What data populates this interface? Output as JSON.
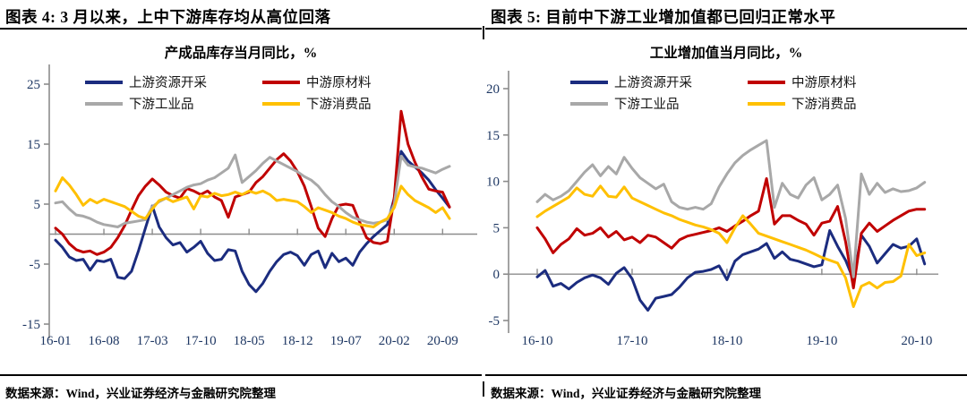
{
  "colors": {
    "navy": "#1b2c7f",
    "red": "#c00000",
    "gray": "#a8a8a8",
    "yellow": "#ffc000",
    "axis": "#8c8c8c",
    "tick_text": "#1f3864"
  },
  "panels": [
    {
      "header": "图表 4:  3 月以来，上中下游库存均从高位回落",
      "footer": "数据来源：Wind，兴业证券经济与金融研究院整理"
    },
    {
      "header": "图表 5:  目前中下游工业增加值都已回归正常水平",
      "footer": "数据来源：Wind，兴业证券经济与金融研究院整理"
    }
  ],
  "chart_data": [
    {
      "type": "line",
      "title": "产成品库存当月同比，%",
      "legend_position": "top",
      "grid": false,
      "zero_axis": true,
      "y_ticks": [
        25,
        15,
        5,
        -5,
        -15
      ],
      "ylim": [
        -17,
        27
      ],
      "x_tick_labels": [
        "16-01",
        "16-08",
        "17-03",
        "17-10",
        "18-05",
        "18-12",
        "19-07",
        "20-02",
        "20-09"
      ],
      "months": [
        "16-01",
        "16-02",
        "16-03",
        "16-04",
        "16-05",
        "16-06",
        "16-07",
        "16-08",
        "16-09",
        "16-10",
        "16-11",
        "16-12",
        "17-01",
        "17-02",
        "17-03",
        "17-04",
        "17-05",
        "17-06",
        "17-07",
        "17-08",
        "17-09",
        "17-10",
        "17-11",
        "17-12",
        "18-01",
        "18-02",
        "18-03",
        "18-04",
        "18-05",
        "18-06",
        "18-07",
        "18-08",
        "18-09",
        "18-10",
        "18-11",
        "18-12",
        "19-01",
        "19-02",
        "19-03",
        "19-04",
        "19-05",
        "19-06",
        "19-07",
        "19-08",
        "19-09",
        "19-10",
        "19-11",
        "19-12",
        "20-01",
        "20-02",
        "20-03",
        "20-04",
        "20-05",
        "20-06",
        "20-07",
        "20-08",
        "20-09",
        "20-10"
      ],
      "series": [
        {
          "name": "上游资源开采",
          "key": "upstream",
          "color_key": "navy",
          "values": [
            -1.0,
            -2.2,
            -3.8,
            -4.4,
            -4.2,
            -6.0,
            -4.4,
            -4.6,
            -4.2,
            -7.2,
            -7.4,
            -6.2,
            -2.8,
            1.0,
            4.7,
            1.2,
            -0.6,
            -1.8,
            -1.4,
            -3.0,
            -2.2,
            -1.2,
            -3.2,
            -4.4,
            -4.2,
            -2.6,
            -2.8,
            -6.2,
            -8.4,
            -9.6,
            -8.2,
            -6.2,
            -4.6,
            -3.4,
            -3.0,
            -3.6,
            -5.2,
            -3.4,
            -2.8,
            -5.6,
            -3.2,
            -4.6,
            -4.0,
            -5.2,
            -3.0,
            -1.6,
            -0.4,
            0.6,
            1.6,
            6.0,
            13.8,
            12.2,
            11.2,
            10.2,
            9.0,
            7.4,
            6.0,
            4.5
          ]
        },
        {
          "name": "中游原材料",
          "key": "midstream",
          "color_key": "red",
          "values": [
            1.0,
            0.0,
            -1.6,
            -2.6,
            -3.0,
            -2.8,
            -3.4,
            -3.0,
            -2.2,
            -0.6,
            1.4,
            4.0,
            6.4,
            8.0,
            9.2,
            8.2,
            7.0,
            6.4,
            6.0,
            7.6,
            7.2,
            6.6,
            7.2,
            6.2,
            5.6,
            2.8,
            6.2,
            6.6,
            7.0,
            8.6,
            9.6,
            11.0,
            12.4,
            13.4,
            12.2,
            10.4,
            8.0,
            4.6,
            1.0,
            -0.4,
            2.6,
            4.8,
            5.0,
            4.8,
            2.0,
            -0.6,
            -1.4,
            -1.6,
            -1.2,
            6.0,
            20.5,
            15.0,
            12.0,
            9.5,
            7.5,
            7.2,
            7.0,
            4.5
          ]
        },
        {
          "name": "下游工业品",
          "key": "downstream-industrial",
          "color_key": "gray",
          "values": [
            5.2,
            5.4,
            4.2,
            3.2,
            3.0,
            2.6,
            2.0,
            1.6,
            1.4,
            1.2,
            1.8,
            2.0,
            2.2,
            2.4,
            4.6,
            5.4,
            6.0,
            6.6,
            7.2,
            7.8,
            8.2,
            8.4,
            9.0,
            9.4,
            10.2,
            11.0,
            13.2,
            8.6,
            9.6,
            10.6,
            11.8,
            12.8,
            12.2,
            11.6,
            11.0,
            10.4,
            9.6,
            9.0,
            8.0,
            6.6,
            5.4,
            4.6,
            3.6,
            2.8,
            2.4,
            2.0,
            1.8,
            2.0,
            2.4,
            5.0,
            13.0,
            11.5,
            11.2,
            11.0,
            10.6,
            10.2,
            10.8,
            11.3
          ]
        },
        {
          "name": "下游消费品",
          "key": "downstream-consumer",
          "color_key": "yellow",
          "values": [
            7.2,
            9.4,
            8.2,
            6.6,
            4.8,
            5.8,
            5.2,
            5.8,
            5.4,
            5.0,
            4.6,
            3.8,
            3.0,
            2.6,
            4.2,
            5.6,
            6.0,
            5.4,
            5.8,
            6.2,
            4.2,
            6.4,
            6.2,
            6.8,
            6.4,
            6.6,
            7.0,
            6.6,
            7.2,
            6.8,
            7.2,
            6.6,
            5.6,
            5.8,
            5.6,
            5.4,
            4.6,
            3.6,
            4.4,
            4.0,
            3.6,
            3.0,
            2.6,
            2.0,
            1.6,
            1.4,
            1.2,
            2.0,
            2.6,
            4.4,
            8.0,
            6.6,
            5.6,
            5.0,
            4.4,
            3.6,
            4.4,
            2.6
          ]
        }
      ]
    },
    {
      "type": "line",
      "title": "工业增加值当月同比，%",
      "legend_position": "top",
      "grid": false,
      "zero_axis": true,
      "y_ticks": [
        20,
        15,
        10,
        5,
        0,
        -5
      ],
      "ylim": [
        -7,
        22
      ],
      "x_tick_labels": [
        "16-10",
        "17-10",
        "18-10",
        "19-10",
        "20-10"
      ],
      "months": [
        "16-10",
        "16-11",
        "16-12",
        "17-01",
        "17-02",
        "17-03",
        "17-04",
        "17-05",
        "17-06",
        "17-07",
        "17-08",
        "17-09",
        "17-10",
        "17-11",
        "17-12",
        "18-01",
        "18-02",
        "18-03",
        "18-04",
        "18-05",
        "18-06",
        "18-07",
        "18-08",
        "18-09",
        "18-10",
        "18-11",
        "18-12",
        "19-01",
        "19-02",
        "19-03",
        "19-04",
        "19-05",
        "19-06",
        "19-07",
        "19-08",
        "19-09",
        "19-10",
        "19-11",
        "19-12",
        "20-01",
        "20-02",
        "20-03",
        "20-04",
        "20-05",
        "20-06",
        "20-07",
        "20-08",
        "20-09",
        "20-10",
        "20-11"
      ],
      "series": [
        {
          "name": "上游资源开采",
          "key": "upstream",
          "color_key": "navy",
          "values": [
            -0.3,
            0.4,
            -1.3,
            -1.0,
            -1.6,
            -0.9,
            -0.4,
            -0.1,
            -0.4,
            -1.1,
            0.1,
            0.7,
            -0.5,
            -2.8,
            -3.9,
            -2.6,
            -2.4,
            -2.2,
            -1.4,
            -0.4,
            0.2,
            0.3,
            0.5,
            0.9,
            -0.6,
            1.4,
            2.1,
            2.4,
            2.7,
            3.3,
            1.7,
            2.4,
            1.6,
            1.4,
            1.1,
            0.8,
            1.0,
            4.7,
            3.0,
            1.5,
            -0.6,
            4.2,
            3.0,
            1.2,
            2.2,
            3.2,
            2.8,
            3.0,
            3.8,
            1.1
          ]
        },
        {
          "name": "中游原材料",
          "key": "midstream",
          "color_key": "red",
          "values": [
            5.0,
            3.8,
            2.3,
            3.2,
            3.8,
            4.9,
            4.2,
            4.4,
            5.0,
            4.0,
            4.6,
            3.7,
            4.0,
            3.4,
            4.2,
            4.0,
            3.4,
            2.8,
            3.7,
            4.1,
            4.3,
            4.5,
            4.7,
            5.0,
            4.6,
            5.2,
            5.7,
            6.3,
            6.8,
            10.3,
            5.4,
            6.3,
            6.3,
            5.8,
            5.4,
            4.2,
            5.5,
            5.7,
            7.3,
            3.5,
            -1.5,
            4.4,
            5.5,
            4.6,
            5.2,
            5.8,
            6.3,
            6.8,
            7.0,
            7.0
          ]
        },
        {
          "name": "下游工业品",
          "key": "downstream-industrial",
          "color_key": "gray",
          "values": [
            7.8,
            8.6,
            8.0,
            8.4,
            9.0,
            10.0,
            11.0,
            11.8,
            10.6,
            11.6,
            10.8,
            12.6,
            11.4,
            10.4,
            9.8,
            9.2,
            9.7,
            7.8,
            7.2,
            7.0,
            7.2,
            7.0,
            7.6,
            9.4,
            10.8,
            12.0,
            12.8,
            13.4,
            13.9,
            14.4,
            7.2,
            9.8,
            8.6,
            8.2,
            9.6,
            10.4,
            8.0,
            8.6,
            9.6,
            6.0,
            -0.3,
            10.8,
            8.6,
            9.8,
            8.8,
            9.2,
            8.9,
            9.0,
            9.3,
            9.9
          ]
        },
        {
          "name": "下游消费品",
          "key": "downstream-consumer",
          "color_key": "yellow",
          "values": [
            6.2,
            6.8,
            7.3,
            7.8,
            8.3,
            9.3,
            8.6,
            8.4,
            9.5,
            8.4,
            8.3,
            9.4,
            8.2,
            7.8,
            7.4,
            7.0,
            6.6,
            6.3,
            5.9,
            5.6,
            5.3,
            5.1,
            4.8,
            4.4,
            3.4,
            5.0,
            6.3,
            5.4,
            4.4,
            4.1,
            3.8,
            3.5,
            3.2,
            2.9,
            2.6,
            2.2,
            1.8,
            1.5,
            1.2,
            -0.4,
            -3.5,
            -1.3,
            -0.9,
            -1.5,
            -0.9,
            -0.8,
            -0.2,
            3.2,
            2.0,
            2.3
          ]
        }
      ]
    }
  ]
}
